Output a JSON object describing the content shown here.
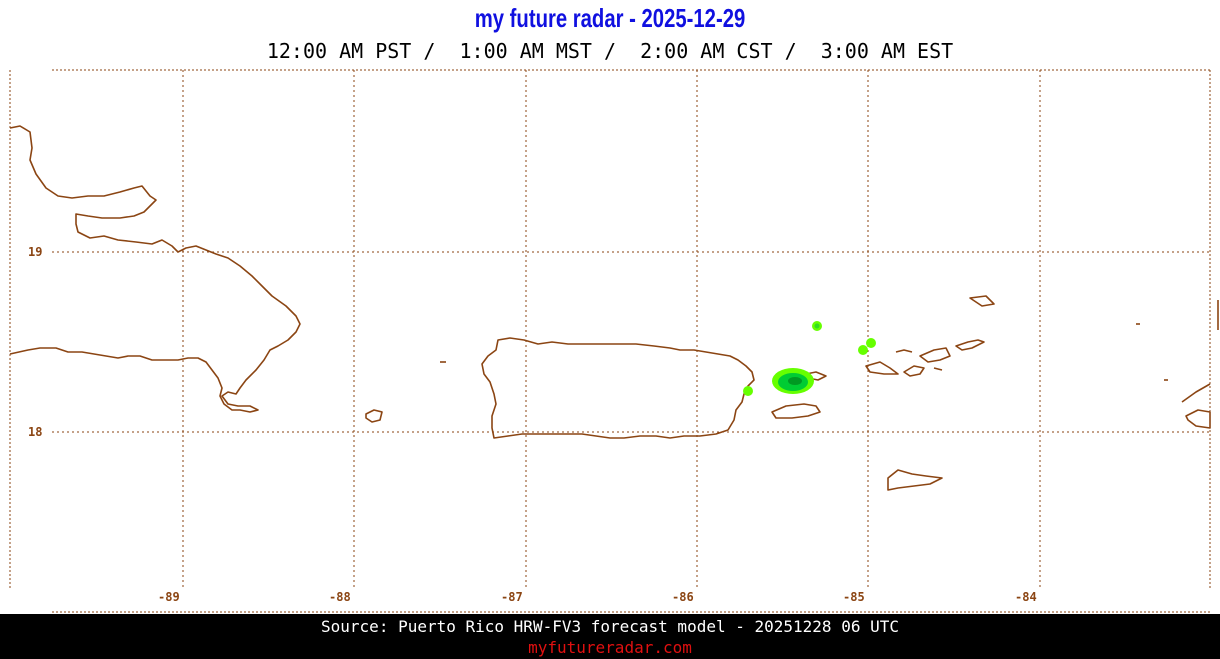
{
  "header": {
    "title": "my future radar - 2025-12-29",
    "times": "12:00 AM PST /  1:00 AM MST /  2:00 AM CST /  3:00 AM EST"
  },
  "map": {
    "lat_labels": [
      "19",
      "18"
    ],
    "lon_labels": [
      "-89",
      "-88",
      "-87",
      "-86",
      "-85",
      "-84"
    ],
    "coast_color": "#8b4513",
    "grid_color": "#8b4513",
    "echo_colors": [
      "#66ff00",
      "#00cc33",
      "#009922"
    ]
  },
  "footer": {
    "source": "Source: Puerto Rico HRW-FV3 forecast model - 20251228 06 UTC",
    "site": "myfutureradar.com"
  }
}
